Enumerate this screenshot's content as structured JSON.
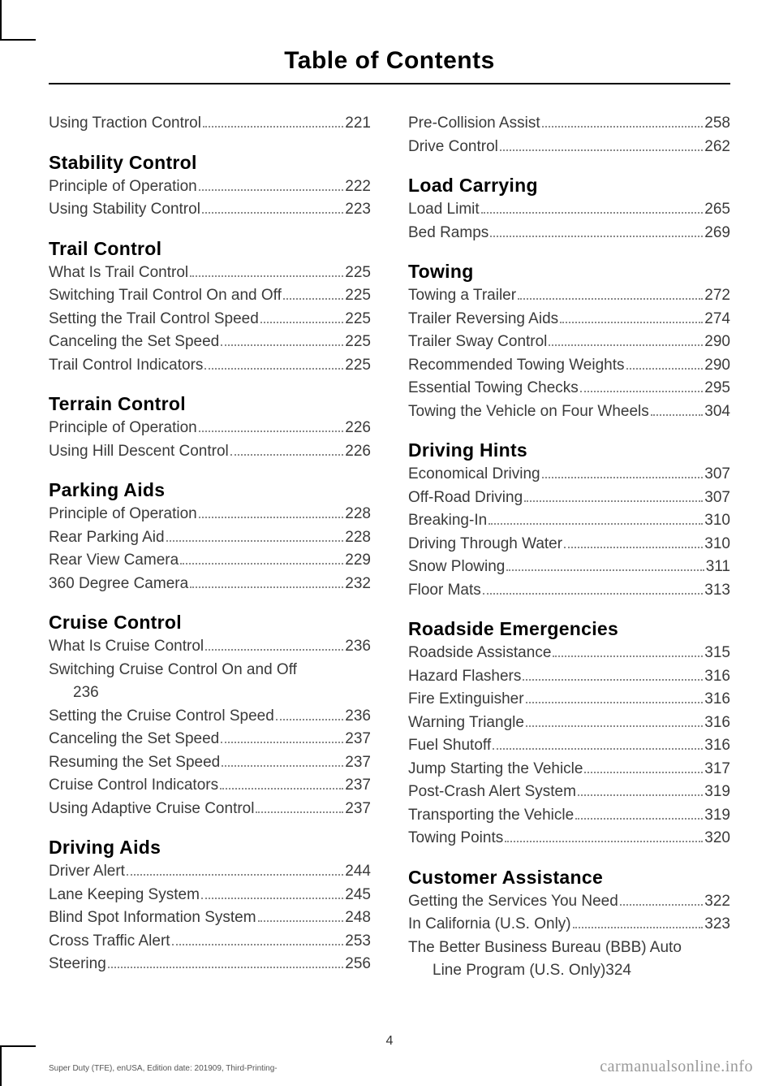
{
  "header": "Table of Contents",
  "page_number": "4",
  "footer_left": "Super Duty (TFE), enUSA, Edition date: 201909, Third-Printing-",
  "footer_right": "carmanualsonline.info",
  "left_col": [
    {
      "type": "entry",
      "label": "Using Traction Control",
      "page": "221"
    },
    {
      "type": "section",
      "label": "Stability Control"
    },
    {
      "type": "entry",
      "label": "Principle of Operation",
      "page": "222"
    },
    {
      "type": "entry",
      "label": "Using Stability Control",
      "page": "223"
    },
    {
      "type": "section",
      "label": "Trail Control"
    },
    {
      "type": "entry",
      "label": "What Is Trail Control",
      "page": "225"
    },
    {
      "type": "entry",
      "label": "Switching Trail Control On and Off",
      "page": "225"
    },
    {
      "type": "entry",
      "label": "Setting the Trail Control Speed",
      "page": "225"
    },
    {
      "type": "entry",
      "label": "Canceling the Set Speed",
      "page": "225"
    },
    {
      "type": "entry",
      "label": "Trail Control Indicators",
      "page": "225"
    },
    {
      "type": "section",
      "label": "Terrain Control"
    },
    {
      "type": "entry",
      "label": "Principle of Operation",
      "page": "226"
    },
    {
      "type": "entry",
      "label": "Using Hill Descent Control",
      "page": "226"
    },
    {
      "type": "section",
      "label": "Parking Aids"
    },
    {
      "type": "entry",
      "label": "Principle of Operation",
      "page": "228"
    },
    {
      "type": "entry",
      "label": "Rear Parking Aid",
      "page": "228"
    },
    {
      "type": "entry",
      "label": "Rear View Camera",
      "page": "229"
    },
    {
      "type": "entry",
      "label": "360 Degree Camera",
      "page": "232"
    },
    {
      "type": "section",
      "label": "Cruise Control"
    },
    {
      "type": "entry",
      "label": "What Is Cruise Control",
      "page": "236"
    },
    {
      "type": "wrap",
      "line1": "Switching Cruise Control On and Off",
      "line2": "",
      "page": "236"
    },
    {
      "type": "entry",
      "label": "Setting the Cruise Control Speed",
      "page": "236"
    },
    {
      "type": "entry",
      "label": "Canceling the Set Speed",
      "page": "237"
    },
    {
      "type": "entry",
      "label": "Resuming the Set Speed",
      "page": "237"
    },
    {
      "type": "entry",
      "label": "Cruise Control Indicators",
      "page": "237"
    },
    {
      "type": "entry",
      "label": "Using Adaptive Cruise Control",
      "page": "237"
    },
    {
      "type": "section",
      "label": "Driving Aids"
    },
    {
      "type": "entry",
      "label": "Driver Alert",
      "page": "244"
    },
    {
      "type": "entry",
      "label": "Lane Keeping System",
      "page": "245"
    },
    {
      "type": "entry",
      "label": "Blind Spot Information System",
      "page": "248"
    },
    {
      "type": "entry",
      "label": "Cross Traffic Alert",
      "page": "253"
    },
    {
      "type": "entry",
      "label": "Steering",
      "page": "256"
    }
  ],
  "right_col": [
    {
      "type": "entry",
      "label": "Pre-Collision Assist",
      "page": "258"
    },
    {
      "type": "entry",
      "label": "Drive Control",
      "page": "262"
    },
    {
      "type": "section",
      "label": "Load Carrying"
    },
    {
      "type": "entry",
      "label": "Load Limit",
      "page": "265"
    },
    {
      "type": "entry",
      "label": "Bed Ramps",
      "page": "269"
    },
    {
      "type": "section",
      "label": "Towing"
    },
    {
      "type": "entry",
      "label": "Towing a Trailer",
      "page": "272"
    },
    {
      "type": "entry",
      "label": "Trailer Reversing Aids",
      "page": "274"
    },
    {
      "type": "entry",
      "label": "Trailer Sway Control",
      "page": "290"
    },
    {
      "type": "entry",
      "label": "Recommended Towing Weights",
      "page": "290"
    },
    {
      "type": "entry",
      "label": "Essential Towing Checks",
      "page": "295"
    },
    {
      "type": "entry",
      "label": "Towing the Vehicle on Four Wheels",
      "page": "304"
    },
    {
      "type": "section",
      "label": "Driving Hints"
    },
    {
      "type": "entry",
      "label": "Economical Driving",
      "page": "307"
    },
    {
      "type": "entry",
      "label": "Off-Road Driving",
      "page": "307"
    },
    {
      "type": "entry",
      "label": "Breaking-In",
      "page": "310"
    },
    {
      "type": "entry",
      "label": "Driving Through Water",
      "page": "310"
    },
    {
      "type": "entry",
      "label": "Snow Plowing",
      "page": "311"
    },
    {
      "type": "entry",
      "label": "Floor Mats",
      "page": "313"
    },
    {
      "type": "section",
      "label": "Roadside Emergencies"
    },
    {
      "type": "entry",
      "label": "Roadside Assistance",
      "page": "315"
    },
    {
      "type": "entry",
      "label": "Hazard Flashers",
      "page": "316"
    },
    {
      "type": "entry",
      "label": "Fire Extinguisher",
      "page": "316"
    },
    {
      "type": "entry",
      "label": "Warning Triangle",
      "page": "316"
    },
    {
      "type": "entry",
      "label": "Fuel Shutoff",
      "page": "316"
    },
    {
      "type": "entry",
      "label": "Jump Starting the Vehicle",
      "page": "317"
    },
    {
      "type": "entry",
      "label": "Post-Crash Alert System",
      "page": "319"
    },
    {
      "type": "entry",
      "label": "Transporting the Vehicle",
      "page": "319"
    },
    {
      "type": "entry",
      "label": "Towing Points",
      "page": "320"
    },
    {
      "type": "section",
      "label": "Customer Assistance"
    },
    {
      "type": "entry",
      "label": "Getting the Services You Need",
      "page": "322"
    },
    {
      "type": "entry",
      "label": "In California (U.S. Only)",
      "page": "323"
    },
    {
      "type": "wrap",
      "line1": "The Better Business Bureau (BBB) Auto",
      "line2": "Line Program (U.S. Only)",
      "page": "324"
    }
  ]
}
